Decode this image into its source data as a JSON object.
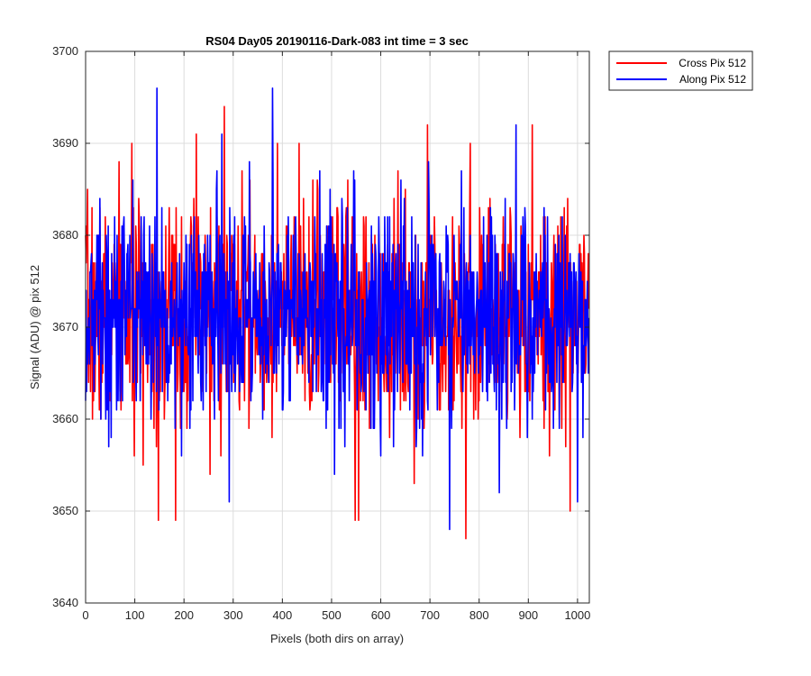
{
  "chart_data": {
    "type": "line",
    "title": "RS04 Day05 20190116-Dark-083 int time = 3 sec",
    "xlabel": "Pixels (both dirs on array)",
    "ylabel": "Signal (ADU) @ pix 512",
    "xlim": [
      0,
      1024
    ],
    "ylim": [
      3640,
      3700
    ],
    "xticks": [
      0,
      100,
      200,
      300,
      400,
      500,
      600,
      700,
      800,
      900,
      1000
    ],
    "yticks": [
      3640,
      3650,
      3660,
      3670,
      3680,
      3690,
      3700
    ],
    "grid": true,
    "legend_position": "outside-top-right",
    "noise_model": {
      "samples": 1024,
      "mean": 3671.5,
      "sigma": 6.0
    },
    "series": [
      {
        "name": "Cross Pix 512",
        "color": "#ff0000",
        "seed": 7,
        "features": [
          {
            "x": 148,
            "y": 3649
          },
          {
            "x": 183,
            "y": 3649
          },
          {
            "x": 225,
            "y": 3691
          },
          {
            "x": 282,
            "y": 3694
          },
          {
            "x": 548,
            "y": 3649
          },
          {
            "x": 555,
            "y": 3649
          },
          {
            "x": 695,
            "y": 3692
          },
          {
            "x": 773,
            "y": 3647
          },
          {
            "x": 908,
            "y": 3692
          },
          {
            "x": 985,
            "y": 3650
          }
        ]
      },
      {
        "name": "Along Pix 512",
        "color": "#0000ff",
        "seed": 13,
        "features": [
          {
            "x": 145,
            "y": 3696
          },
          {
            "x": 380,
            "y": 3696
          },
          {
            "x": 292,
            "y": 3651
          },
          {
            "x": 740,
            "y": 3648
          },
          {
            "x": 875,
            "y": 3692
          },
          {
            "x": 1000,
            "y": 3651
          }
        ]
      }
    ]
  }
}
